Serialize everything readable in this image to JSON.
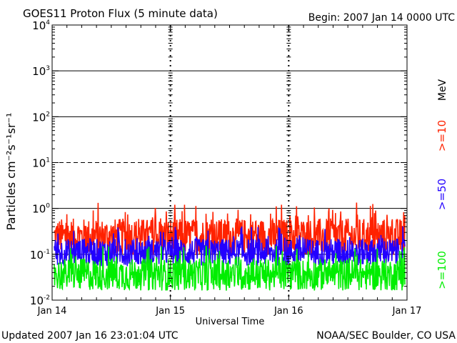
{
  "chart_data": {
    "type": "line",
    "title": "GOES11 Proton Flux (5 minute data)",
    "begin_label": "Begin: 2007 Jan 14 0000 UTC",
    "ylabel": "Particles cm⁻²s⁻¹sr⁻¹",
    "xlabel": "Universal Time",
    "y_scale": "log",
    "ylim": [
      0.01,
      10000
    ],
    "y_tick_exponents": [
      "-2",
      "-1",
      "0",
      "1",
      "2",
      "3",
      "4"
    ],
    "y_tick_values": [
      0.01,
      0.1,
      1,
      10,
      100,
      1000,
      10000
    ],
    "x_ticks": [
      "Jan 14",
      "Jan 15",
      "Jan 16",
      "Jan 17"
    ],
    "x_range_days": [
      14,
      17
    ],
    "units_label": "MeV",
    "series": [
      {
        "name": ">=10",
        "color": "#ff2200",
        "baseline": 0.24,
        "spread": 0.4
      },
      {
        "name": ">=50",
        "color": "#2200ff",
        "baseline": 0.11,
        "spread": 0.3
      },
      {
        "name": ">=100",
        "color": "#00ee00",
        "baseline": 0.036,
        "spread": 0.35
      }
    ],
    "threshold_lines": [
      {
        "value": 10,
        "style": "dashed"
      },
      {
        "value": 0.1,
        "style": "solid"
      }
    ]
  },
  "footer": {
    "updated": "Updated 2007 Jan 16 23:01:04 UTC",
    "source": "NOAA/SEC Boulder, CO USA"
  }
}
